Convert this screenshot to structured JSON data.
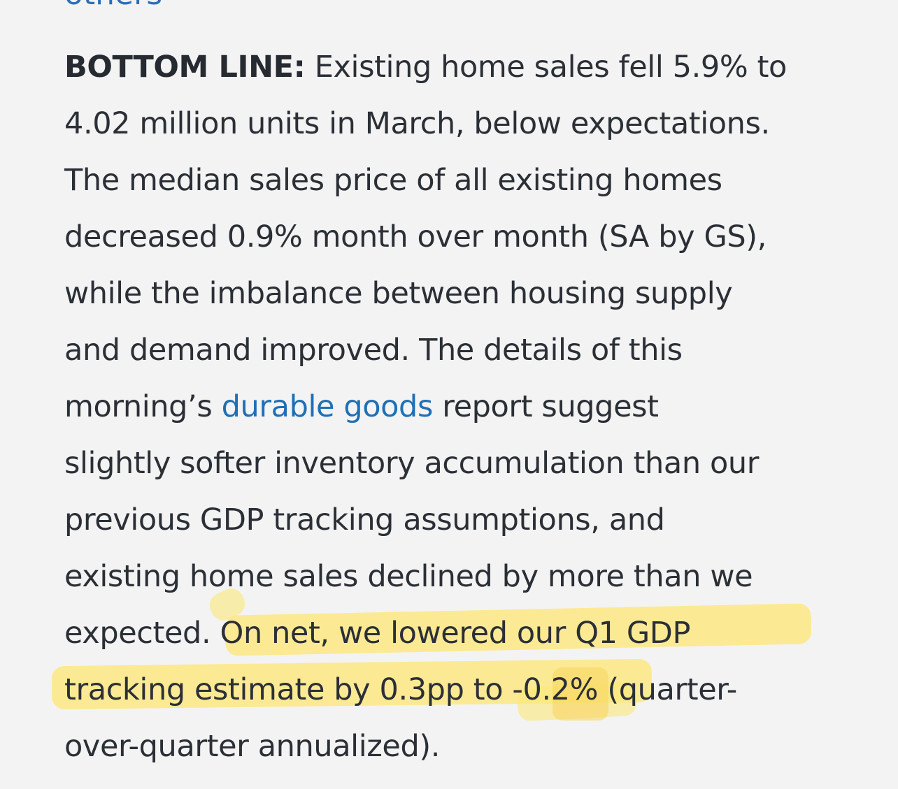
{
  "top_link_text": "others",
  "article": {
    "lead": "BOTTOM LINE:",
    "line1_rest": " Existing home sales fell 5.9% to",
    "line2": "4.02 million units in March, below expectations.",
    "line3": "The median sales price of all existing homes",
    "line4": "decreased 0.9% month over month (SA by GS),",
    "line5": "while the imbalance between housing supply",
    "line6": "and demand improved. The details of this",
    "line7_before": "morning’s ",
    "line7_link": "durable goods",
    "line7_after": " report suggest",
    "line8": "slightly softer inventory accumulation than our",
    "line9": "previous GDP tracking assumptions, and",
    "line10": "existing home sales declined by more than we",
    "line11_before": "expected. ",
    "line11_highlight": "On net, we lowered our Q1 GDP",
    "line12_highlight": "tracking estimate by 0.3pp to -0.2%",
    "line12_after": " (quarter-",
    "line13": "over-quarter annualized)."
  },
  "colors": {
    "background": "#f3f3f3",
    "text": "#2b2f36",
    "link": "#1f6fb6",
    "highlight": "#fce77a"
  }
}
